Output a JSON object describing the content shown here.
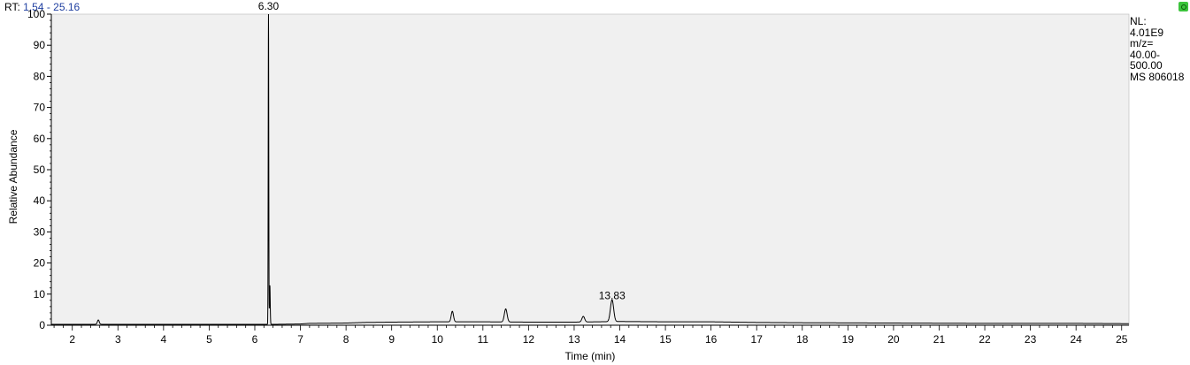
{
  "header": {
    "rt_prefix": "RT:",
    "rt_range": "1.54 - 25.16"
  },
  "info_panel": {
    "nl_label": "NL:",
    "nl_value": "4.01E9",
    "mz_label": "m/z=",
    "mz_low": "40.00-",
    "mz_high": "500.00",
    "scan": "MS 806018"
  },
  "icons": {
    "corner": "status-icon"
  },
  "colors": {
    "plot_background": "#f0f0f0",
    "trace": "#000000",
    "rt_range_text": "#1f3fa0",
    "status_icon": "#3cc43c"
  },
  "chart_data": {
    "type": "line",
    "xlabel": "Time (min)",
    "ylabel": "Relative Abundance",
    "xlim": [
      1.54,
      25.16
    ],
    "ylim": [
      0,
      100
    ],
    "x_ticks": [
      2,
      3,
      4,
      5,
      6,
      7,
      8,
      9,
      10,
      11,
      12,
      13,
      14,
      15,
      16,
      17,
      18,
      19,
      20,
      21,
      22,
      23,
      24,
      25
    ],
    "y_ticks": [
      0,
      10,
      20,
      30,
      40,
      50,
      60,
      70,
      80,
      90,
      100
    ],
    "grid": false,
    "series": [
      {
        "baseline": [
          [
            1.54,
            0.3
          ],
          [
            2.5,
            0.3
          ],
          [
            6.2,
            0.3
          ],
          [
            6.5,
            0.3
          ],
          [
            7.0,
            0.4
          ],
          [
            7.2,
            0.6
          ],
          [
            8.0,
            0.7
          ],
          [
            8.4,
            0.9
          ],
          [
            9.0,
            1.0
          ],
          [
            10.0,
            1.1
          ],
          [
            11.0,
            1.1
          ],
          [
            12.0,
            1.0
          ],
          [
            13.0,
            1.0
          ],
          [
            14.0,
            1.2
          ],
          [
            15.0,
            1.1
          ],
          [
            16.0,
            1.1
          ],
          [
            17.0,
            0.9
          ],
          [
            18.0,
            0.8
          ],
          [
            20.0,
            0.7
          ],
          [
            22.0,
            0.6
          ],
          [
            24.0,
            0.6
          ],
          [
            25.16,
            0.5
          ]
        ],
        "peaks": [
          {
            "rt": 2.57,
            "height": 1.4,
            "width": 0.02
          },
          {
            "rt": 6.3,
            "height": 100,
            "width": 0.006
          },
          {
            "rt": 6.33,
            "height": 12.5,
            "width": 0.008
          },
          {
            "rt": 10.33,
            "height": 3.4,
            "width": 0.025
          },
          {
            "rt": 11.5,
            "height": 4.2,
            "width": 0.03
          },
          {
            "rt": 13.2,
            "height": 1.8,
            "width": 0.03
          },
          {
            "rt": 13.83,
            "height": 7.0,
            "width": 0.035
          }
        ]
      }
    ],
    "annotations": [
      {
        "label": "6.30",
        "x": 6.3,
        "y": 100
      },
      {
        "label": "13.83",
        "x": 13.83,
        "y": 7.0
      }
    ]
  }
}
